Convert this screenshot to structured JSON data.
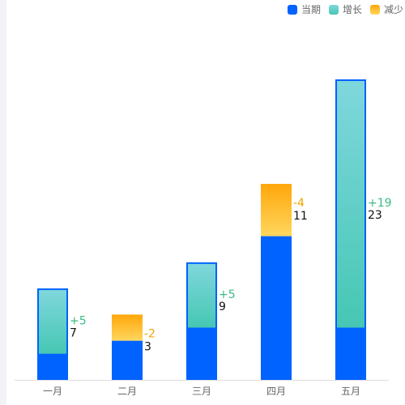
{
  "chart_data": {
    "type": "bar",
    "categories": [
      "一月",
      "二月",
      "三月",
      "四月",
      "五月"
    ],
    "current": [
      7,
      3,
      9,
      11,
      23
    ],
    "change": [
      5,
      -2,
      5,
      -4,
      19
    ],
    "change_labels": [
      "+5",
      "-2",
      "+5",
      "-4",
      "+19"
    ],
    "ylim": [
      0,
      23
    ],
    "legend": {
      "position": "top-right",
      "items": [
        {
          "label": "当期",
          "color": "#0062ff"
        },
        {
          "label": "增长",
          "color": "#5fd1c2"
        },
        {
          "label": "减少",
          "color": "#ffc23d"
        }
      ]
    },
    "colors": {
      "base": "#0062ff",
      "increase_top": "#7fd7dc",
      "increase_bottom": "#46c7b3",
      "decrease_top": "#ffa60a",
      "decrease_bottom": "#ffd75e",
      "increase_label": "#3dbb82",
      "decrease_label": "#f0a500",
      "value_label": "#111111",
      "axis": "#dddddd",
      "tick_label": "#666666"
    }
  }
}
